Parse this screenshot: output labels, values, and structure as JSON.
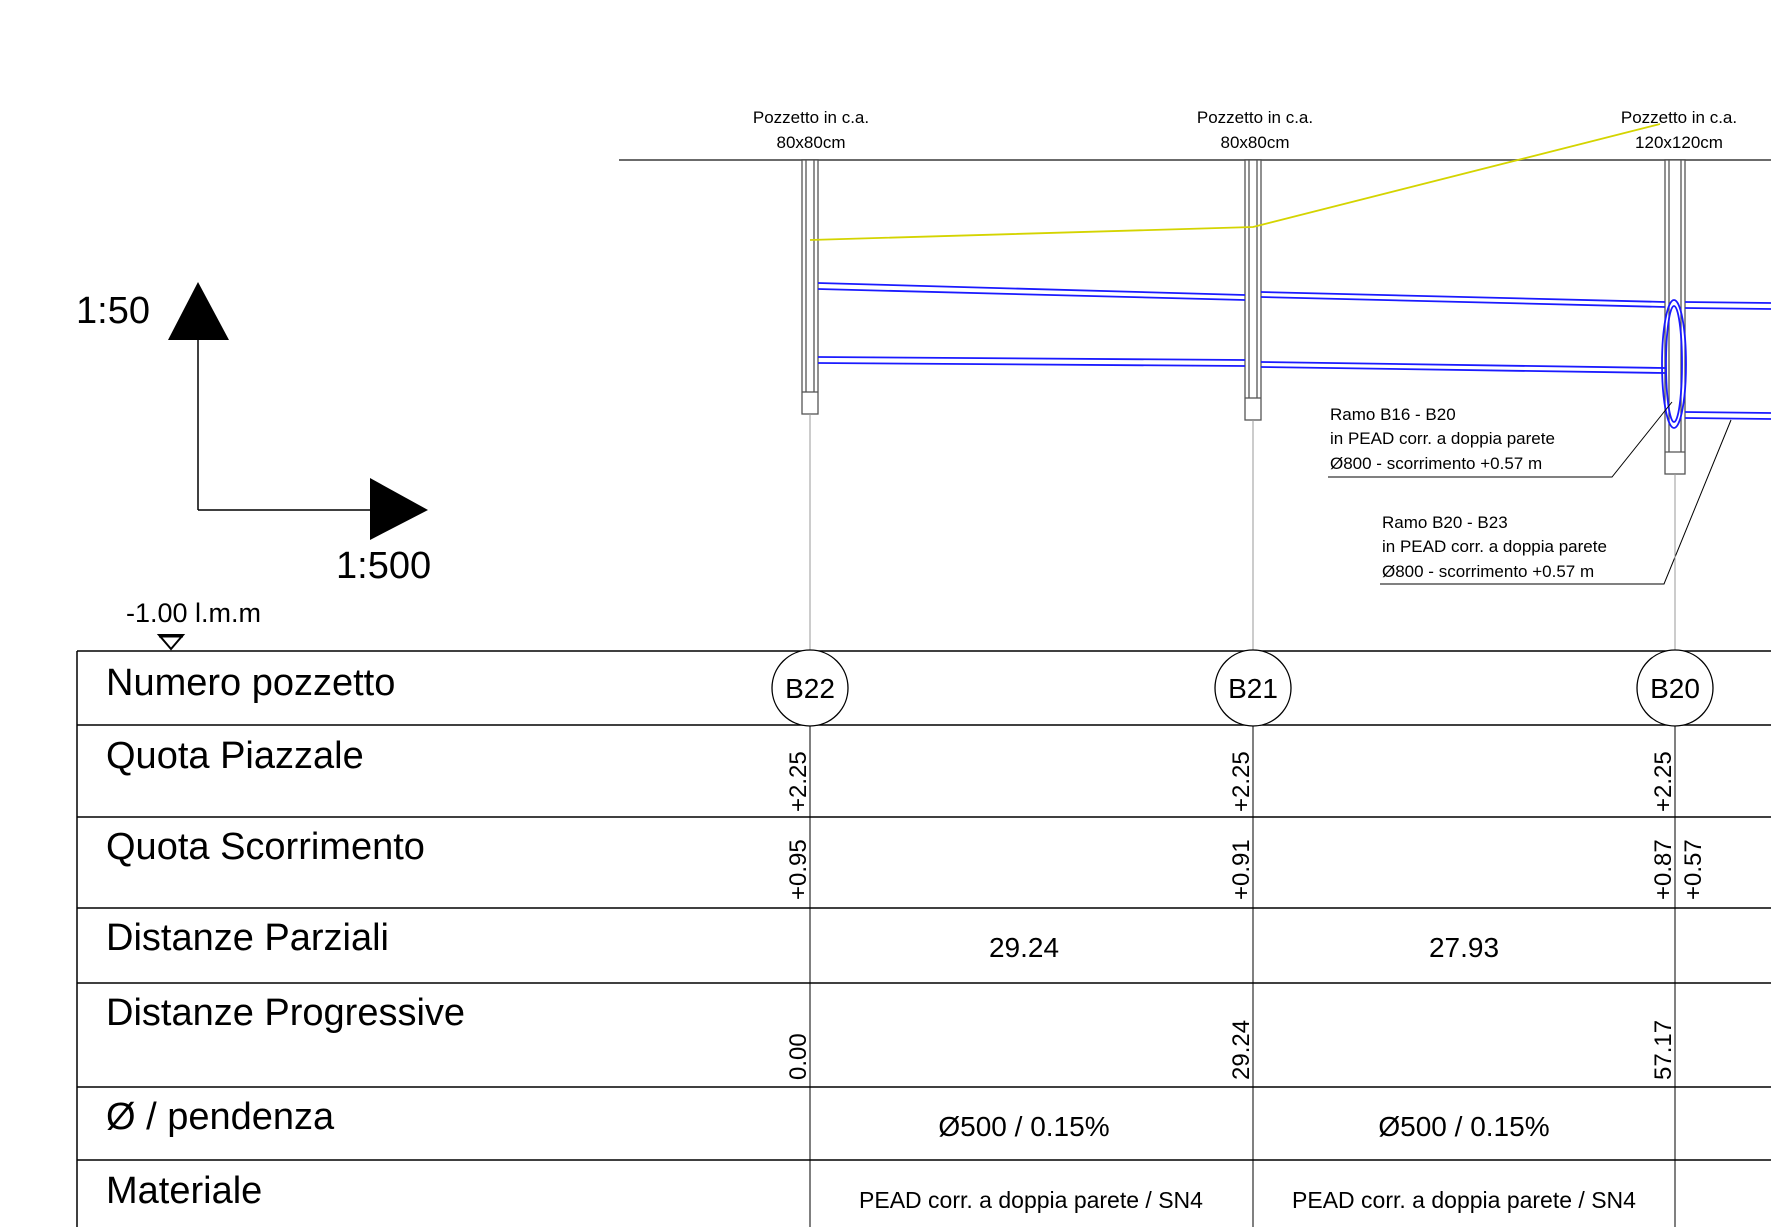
{
  "scales": {
    "vertical": "1:50",
    "horizontal": "1:500"
  },
  "datum": "-1.00 l.m.m",
  "colors": {
    "pipe": "#1a1aff",
    "ground_profile": "#d4d400",
    "lines": "#000000",
    "guides": "#9a9a9a"
  },
  "manholes": [
    {
      "id": "B22",
      "label_line1": "Pozzetto in c.a.",
      "label_line2": "80x80cm"
    },
    {
      "id": "B21",
      "label_line1": "Pozzetto in c.a.",
      "label_line2": "80x80cm"
    },
    {
      "id": "B20",
      "label_line1": "Pozzetto in c.a.",
      "label_line2": "120x120cm"
    }
  ],
  "branch_notes": [
    {
      "line1": "Ramo B16 - B20",
      "line2": "in PEAD corr. a doppia parete",
      "line3": "Ø800 - scorrimento +0.57 m"
    },
    {
      "line1": "Ramo B20 - B23",
      "line2": "in PEAD corr. a doppia parete",
      "line3": "Ø800 - scorrimento +0.57 m"
    }
  ],
  "table": {
    "rows": {
      "numero": "Numero pozzetto",
      "piazzale": "Quota Piazzale",
      "scorrimento": "Quota Scorrimento",
      "parziali": "Distanze Parziali",
      "progressive": "Distanze Progressive",
      "diametro": "Ø / pendenza",
      "materiale": "Materiale"
    },
    "quota_piazzale": [
      "+2.25",
      "+2.25",
      "+2.25"
    ],
    "quota_scorrimento": [
      "+0.95",
      "+0.91",
      "+0.87",
      "+0.57"
    ],
    "distanze_parziali": [
      "29.24",
      "27.93"
    ],
    "distanze_progressive": [
      "0.00",
      "29.24",
      "57.17"
    ],
    "diametro_pendenza": [
      "Ø500 / 0.15%",
      "Ø500 / 0.15%"
    ],
    "materiale": [
      "PEAD corr. a doppia parete / SN4",
      "PEAD corr. a doppia parete / SN4"
    ]
  }
}
